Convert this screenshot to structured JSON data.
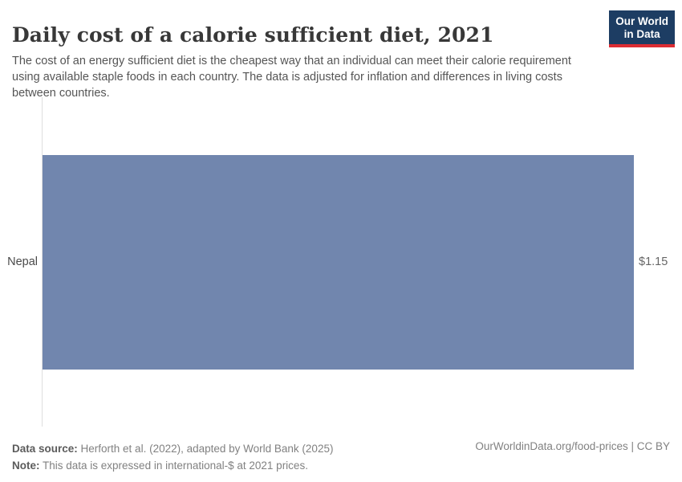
{
  "header": {
    "title": "Daily cost of a calorie sufficient diet, 2021",
    "subtitle": "The cost of an energy sufficient diet is the cheapest way that an individual can meet their calorie requirement using available staple foods in each country. The data is adjusted for inflation and differences in living costs between countries.",
    "logo": {
      "line1": "Our World",
      "line2": "in Data",
      "bg_color": "#1d3d63",
      "accent_color": "#dc2c33"
    }
  },
  "chart_data": {
    "type": "bar",
    "orientation": "horizontal",
    "title": "Daily cost of a calorie sufficient diet, 2021",
    "categories": [
      "Nepal"
    ],
    "values": [
      1.15
    ],
    "value_labels": [
      "$1.15"
    ],
    "unit": "international-$ at 2021 prices",
    "xlim": [
      0,
      1.15
    ],
    "grid": false,
    "legend": false,
    "bar_color": "#7186ae",
    "axis_color": "#dedede"
  },
  "footer": {
    "data_source_label": "Data source:",
    "data_source_text": " Herforth et al. (2022), adapted by World Bank (2025)",
    "note_label": "Note:",
    "note_text": " This data is expressed in international-$ at 2021 prices.",
    "attribution": "OurWorldinData.org/food-prices | CC BY"
  }
}
